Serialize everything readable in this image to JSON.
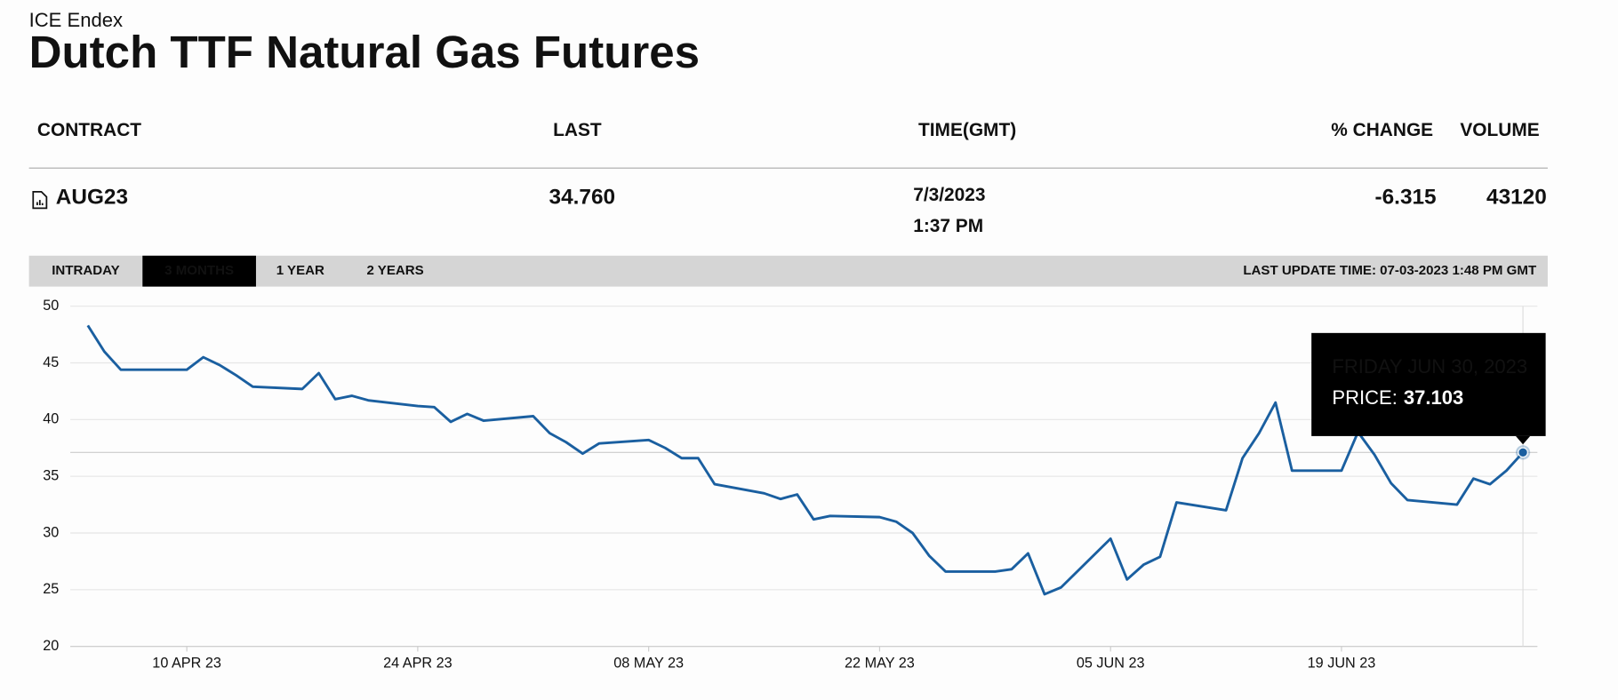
{
  "header": {
    "exchange": "ICE Endex",
    "title": "Dutch TTF Natural Gas Futures"
  },
  "table": {
    "columns": [
      "CONTRACT",
      "LAST",
      "TIME(GMT)",
      "% CHANGE",
      "VOLUME"
    ],
    "row": {
      "contract": "AUG23",
      "last": "34.760",
      "date": "7/3/2023",
      "time": "1:37 PM",
      "change": "-6.315",
      "volume": "43120"
    }
  },
  "tabs": [
    "INTRADAY",
    "3 MONTHS",
    "1 YEAR",
    "2 YEARS"
  ],
  "active_tab": 1,
  "last_update": "LAST UPDATE TIME: 07-03-2023 1:48 PM GMT",
  "chart_data": {
    "type": "line",
    "color": "#1a5fa0",
    "grid": true,
    "x": [
      "2023-04-04",
      "2023-04-05",
      "2023-04-06",
      "2023-04-10",
      "2023-04-11",
      "2023-04-12",
      "2023-04-13",
      "2023-04-14",
      "2023-04-17",
      "2023-04-18",
      "2023-04-19",
      "2023-04-20",
      "2023-04-21",
      "2023-04-24",
      "2023-04-25",
      "2023-04-26",
      "2023-04-27",
      "2023-04-28",
      "2023-05-01",
      "2023-05-02",
      "2023-05-03",
      "2023-05-04",
      "2023-05-05",
      "2023-05-08",
      "2023-05-09",
      "2023-05-10",
      "2023-05-11",
      "2023-05-12",
      "2023-05-15",
      "2023-05-16",
      "2023-05-17",
      "2023-05-18",
      "2023-05-19",
      "2023-05-22",
      "2023-05-23",
      "2023-05-24",
      "2023-05-25",
      "2023-05-26",
      "2023-05-29",
      "2023-05-30",
      "2023-05-31",
      "2023-06-01",
      "2023-06-02",
      "2023-06-05",
      "2023-06-06",
      "2023-06-07",
      "2023-06-08",
      "2023-06-09",
      "2023-06-12",
      "2023-06-13",
      "2023-06-14",
      "2023-06-15",
      "2023-06-16",
      "2023-06-19",
      "2023-06-20",
      "2023-06-21",
      "2023-06-22",
      "2023-06-23",
      "2023-06-26",
      "2023-06-27",
      "2023-06-28",
      "2023-06-29",
      "2023-06-30"
    ],
    "values": [
      48.3,
      46.0,
      44.4,
      44.4,
      45.5,
      44.8,
      43.9,
      42.9,
      42.7,
      44.1,
      41.8,
      42.1,
      41.7,
      41.2,
      41.1,
      39.8,
      40.5,
      39.9,
      40.3,
      38.8,
      38.0,
      37.0,
      37.9,
      38.2,
      37.5,
      36.6,
      36.6,
      34.3,
      33.5,
      33.0,
      33.4,
      31.2,
      31.5,
      31.4,
      31.0,
      30.0,
      28.0,
      26.6,
      26.6,
      26.8,
      28.2,
      24.6,
      25.2,
      29.5,
      25.9,
      27.2,
      27.9,
      32.7,
      32.0,
      36.6,
      38.8,
      41.5,
      35.5,
      35.5,
      38.9,
      36.9,
      34.4,
      32.9,
      32.5,
      34.8,
      34.3,
      35.5,
      37.103
    ],
    "xlim": [
      "2023-04-04",
      "2023-06-30"
    ],
    "xticks": [
      {
        "value": "2023-04-10",
        "label": "10 APR 23"
      },
      {
        "value": "2023-04-24",
        "label": "24 APR 23"
      },
      {
        "value": "2023-05-08",
        "label": "08 MAY 23"
      },
      {
        "value": "2023-05-22",
        "label": "22 MAY 23"
      },
      {
        "value": "2023-06-05",
        "label": "05 JUN 23"
      },
      {
        "value": "2023-06-19",
        "label": "19 JUN 23"
      }
    ],
    "ylim": [
      20,
      50
    ],
    "yticks": [
      20,
      25,
      30,
      35,
      40,
      45,
      50
    ],
    "tooltip": {
      "date": "FRIDAY JUN 30, 2023",
      "label": "PRICE:"
    }
  }
}
